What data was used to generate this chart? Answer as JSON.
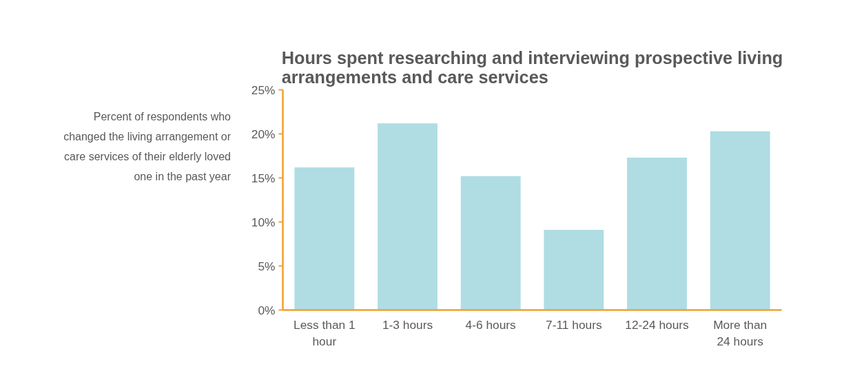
{
  "chart_data": {
    "type": "bar",
    "title": "Hours spent researching and interviewing prospective living arrangements and care services",
    "ylabel": "Percent of respondents who changed the living arrangement or care services of their elderly loved one in the past year",
    "categories": [
      "Less than 1 hour",
      "1-3 hours",
      "4-6 hours",
      "7-11 hours",
      "12-24 hours",
      "More than 24 hours"
    ],
    "values": [
      16.2,
      21.2,
      15.2,
      9.1,
      17.3,
      20.3
    ],
    "color": "#afdde3",
    "ylim": [
      0,
      25
    ],
    "yticks": [
      {
        "value": 0,
        "label": "0%"
      },
      {
        "value": 5,
        "label": "5%"
      },
      {
        "value": 10,
        "label": "10%"
      },
      {
        "value": 15,
        "label": "15%"
      },
      {
        "value": 20,
        "label": "20%"
      },
      {
        "value": 25,
        "label": "25%"
      }
    ],
    "grid": false
  }
}
